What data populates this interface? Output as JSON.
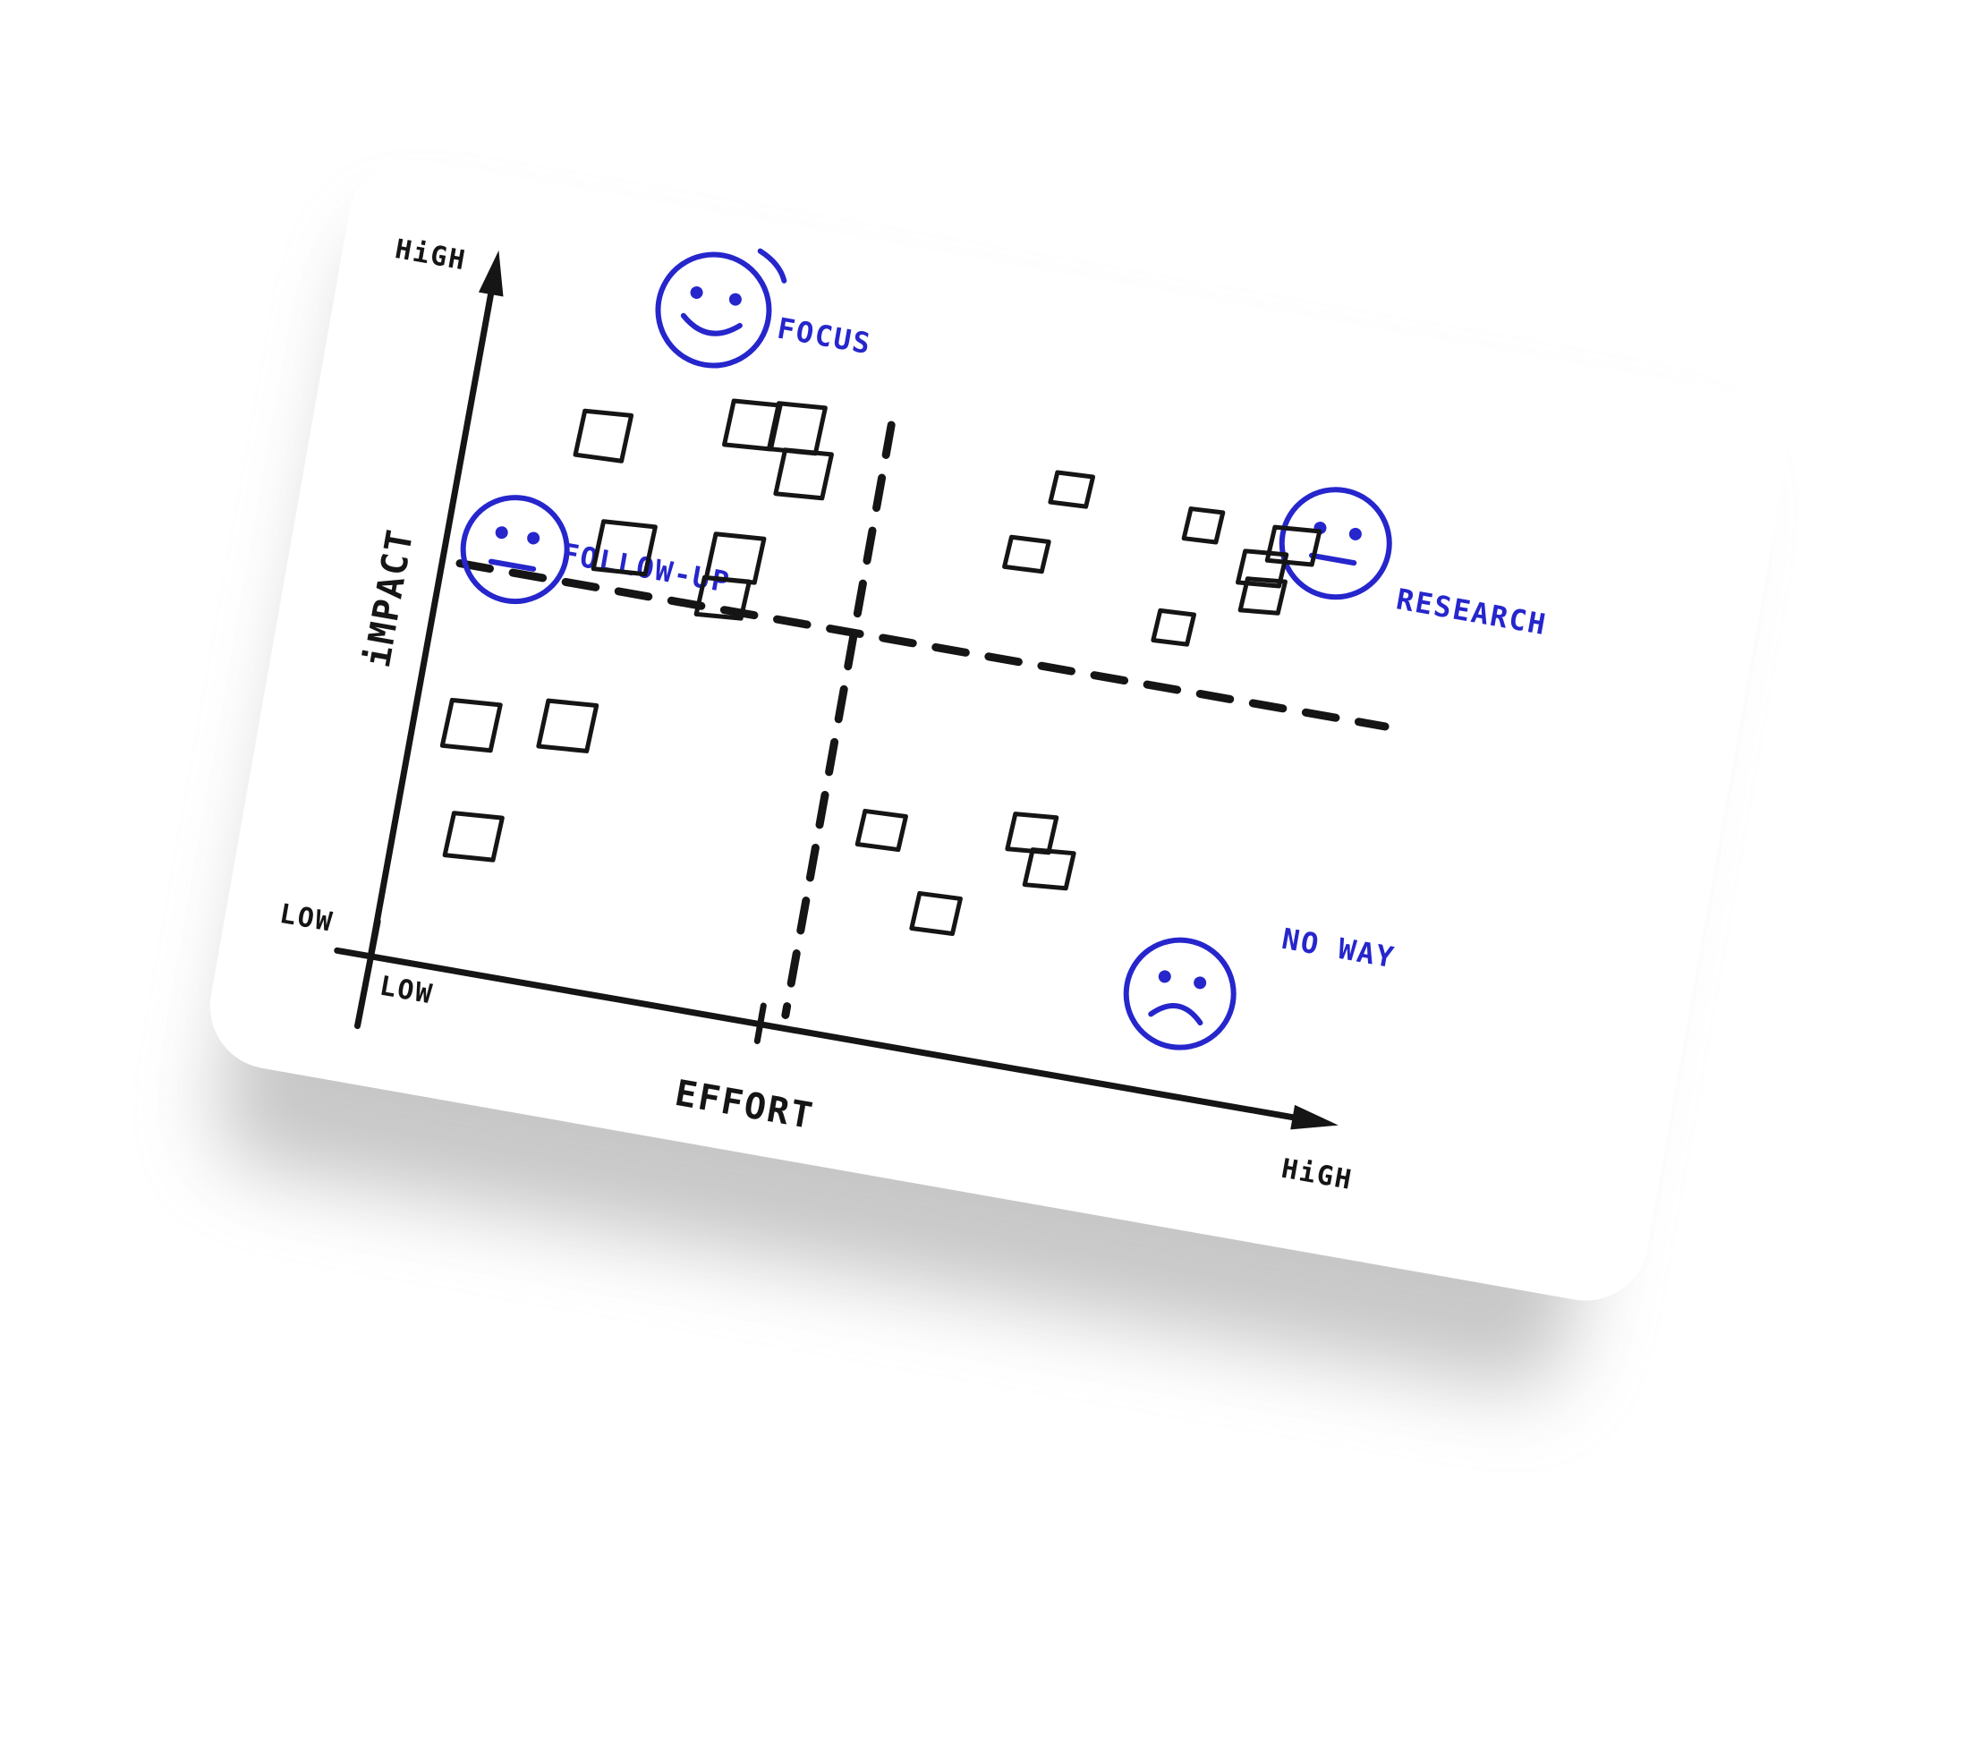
{
  "colors": {
    "ink": "#151515",
    "marker_blue": "#2626cc",
    "card": "#ffffff",
    "shadow": "#9a9a9a"
  },
  "axes": {
    "y_high": "HiGH",
    "y_low": "LOW",
    "y_title": "iMPACT",
    "x_low": "LOW",
    "x_high": "HiGH",
    "x_title": "EFFORT"
  },
  "quadrants": {
    "top_left": {
      "label": "FOCUS",
      "face": "smiley-face-icon"
    },
    "top_right": {
      "label": "RESEARCH",
      "face": "neutral-face-icon"
    },
    "bottom_left": {
      "label": "FOLLOW-UP",
      "face": "neutral-face-icon"
    },
    "bottom_right": {
      "label": "NO WAY",
      "face": "sad-face-icon"
    }
  }
}
